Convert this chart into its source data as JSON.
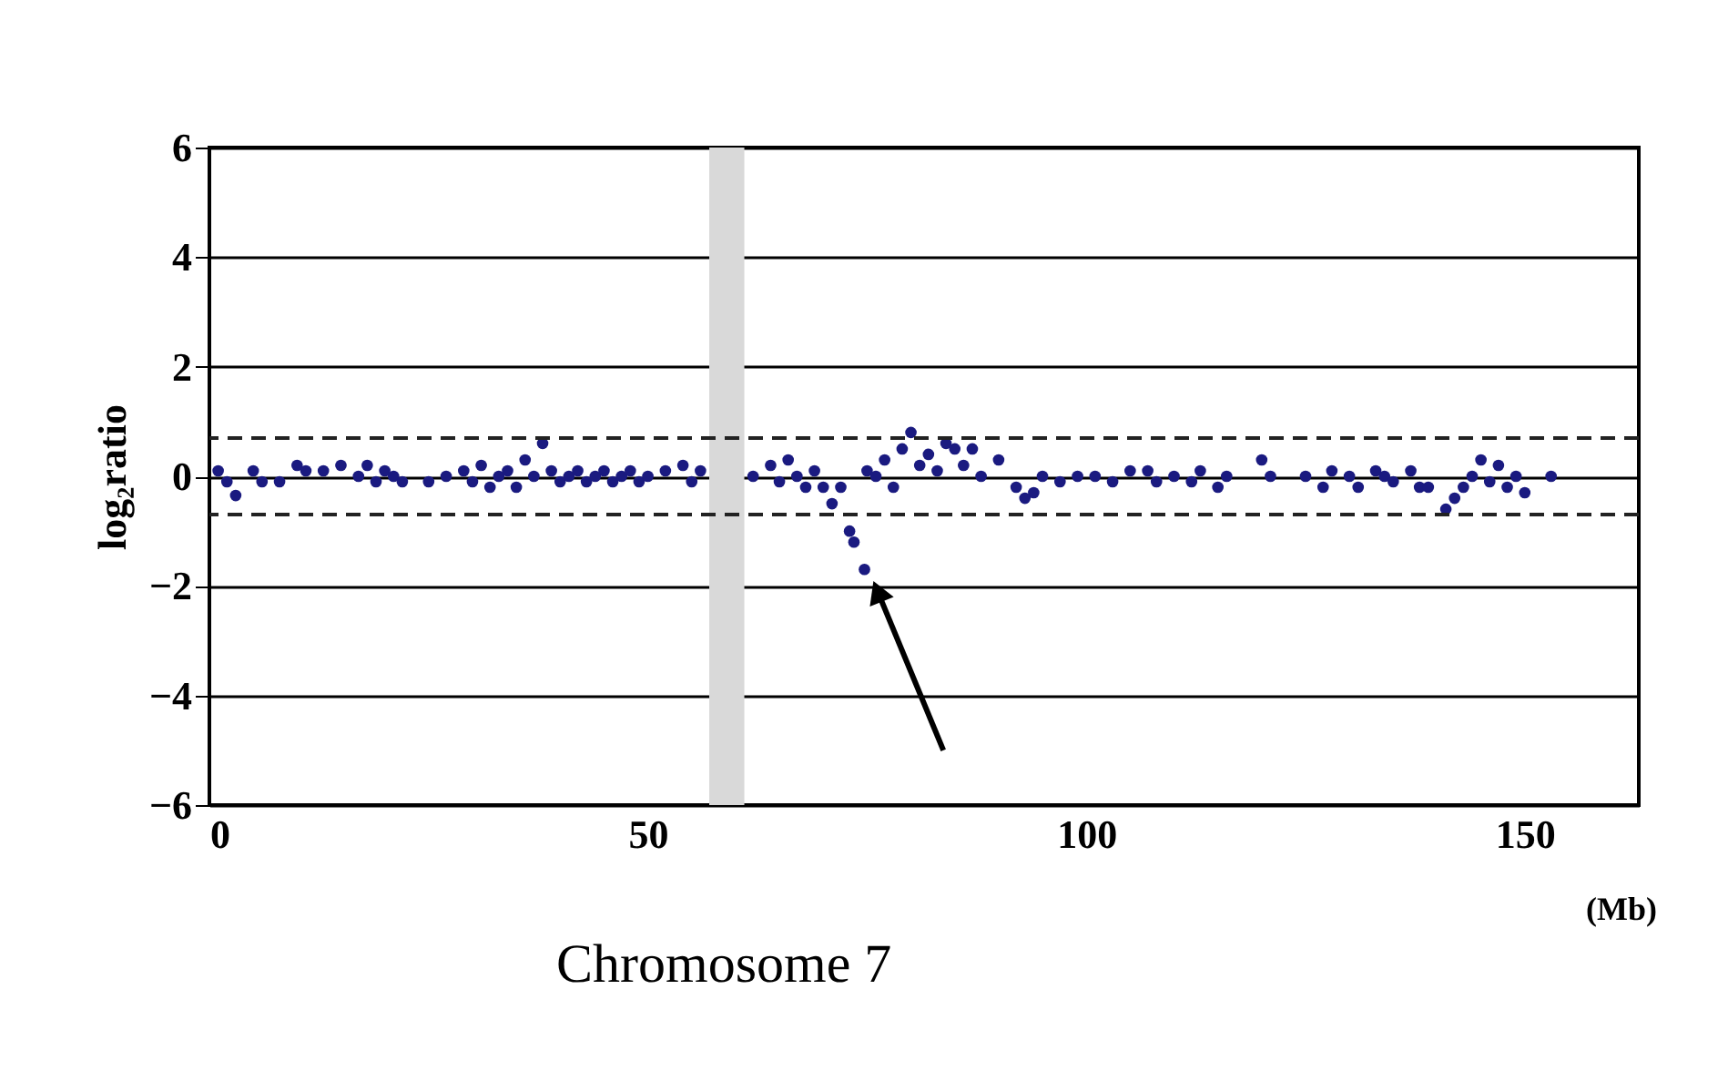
{
  "chart_data": {
    "type": "scatter",
    "xlabel": "Chromosome 7",
    "ylabel": "log₂ratio",
    "annotations": [
      "(Mb)"
    ],
    "x": [
      1,
      2,
      3,
      5,
      6,
      8,
      10,
      11,
      13,
      15,
      17,
      18,
      19,
      20,
      21,
      22,
      25,
      27,
      29,
      30,
      31,
      32,
      33,
      34,
      35,
      36,
      37,
      38,
      39,
      40,
      41,
      42,
      43,
      44,
      45,
      46,
      47,
      48,
      49,
      50,
      52,
      54,
      55,
      56,
      62,
      64,
      65,
      66,
      67,
      68,
      69,
      70,
      71,
      72,
      73,
      73.5,
      74.7,
      75,
      76,
      77,
      78,
      79,
      80,
      81,
      82,
      83,
      84,
      85,
      86,
      87,
      88,
      90,
      92,
      93,
      94,
      95,
      97,
      99,
      101,
      103,
      105,
      107,
      108,
      110,
      112,
      113,
      115,
      116,
      120,
      121,
      125,
      127,
      128,
      130,
      131,
      133,
      134,
      135,
      137,
      138,
      139,
      141,
      142,
      143,
      144,
      145,
      146,
      147,
      148,
      149,
      150,
      153
    ],
    "series": [
      {
        "color": "#1a1a80",
        "values": [
          0.1,
          -0.1,
          -0.35,
          0.1,
          -0.1,
          -0.1,
          0.2,
          0.1,
          0.1,
          0.2,
          0.0,
          0.2,
          -0.1,
          0.1,
          0.0,
          -0.1,
          -0.1,
          0.0,
          0.1,
          -0.1,
          0.2,
          -0.2,
          0.0,
          0.1,
          -0.2,
          0.3,
          0.0,
          0.6,
          0.1,
          -0.1,
          0.0,
          0.1,
          -0.1,
          0.0,
          0.1,
          -0.1,
          0.0,
          0.1,
          -0.1,
          0.0,
          0.1,
          0.2,
          -0.1,
          0.1,
          0.0,
          0.2,
          -0.1,
          0.3,
          0.0,
          -0.2,
          0.1,
          -0.2,
          -0.5,
          -0.2,
          -1.0,
          -1.2,
          -1.7,
          0.1,
          0.0,
          0.3,
          -0.2,
          0.5,
          0.8,
          0.2,
          0.4,
          0.1,
          0.6,
          0.5,
          0.2,
          0.5,
          0.0,
          0.3,
          -0.2,
          -0.4,
          -0.3,
          0.0,
          -0.1,
          0.0,
          0.0,
          -0.1,
          0.1,
          0.1,
          -0.1,
          0.0,
          -0.1,
          0.1,
          -0.2,
          0.0,
          0.3,
          0.0,
          0.0,
          -0.2,
          0.1,
          0.0,
          -0.2,
          0.1,
          0.0,
          -0.1,
          0.1,
          -0.2,
          -0.2,
          -0.6,
          -0.4,
          -0.2,
          0.0,
          0.3,
          -0.1,
          0.2,
          -0.2,
          0.0,
          -0.3,
          0.0
        ]
      }
    ],
    "xlim": [
      0,
      163
    ],
    "xticks": [
      0,
      50,
      100,
      150
    ],
    "ylim": [
      -6,
      6
    ],
    "yticks": [
      -6,
      -4,
      -2,
      0,
      2,
      4,
      6
    ],
    "grid": "y",
    "marker": "circle",
    "ref_lines": [
      {
        "axis": "y",
        "value": 0.7,
        "line_style": "dashed"
      },
      {
        "axis": "y",
        "value": -0.7,
        "line_style": "dashed"
      }
    ],
    "bands": [
      {
        "axis": "x",
        "from": 57,
        "to": 61,
        "color": "#d9d9d9"
      }
    ]
  }
}
